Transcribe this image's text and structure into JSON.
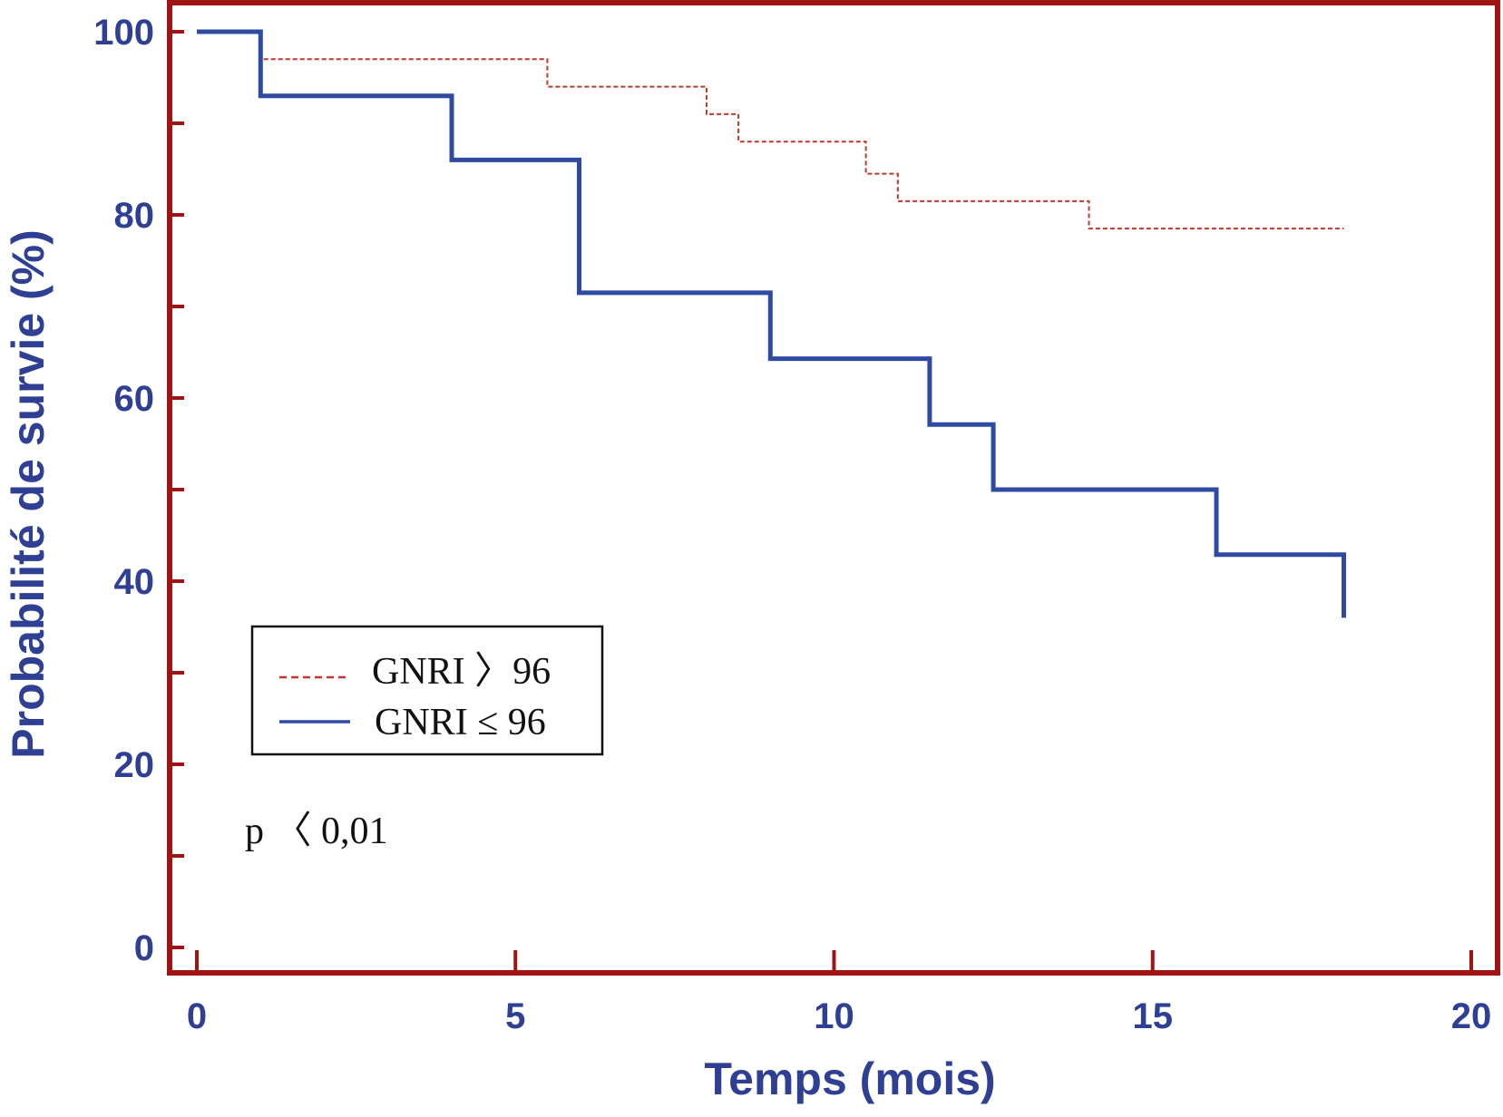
{
  "chart_data": {
    "type": "line",
    "subtype": "step",
    "title": "",
    "xlabel": "Temps (mois)",
    "ylabel": "Probabilité de survie (%)",
    "xlim": [
      0,
      20
    ],
    "ylim": [
      0,
      100
    ],
    "x_ticks": [
      0,
      5,
      10,
      15,
      20
    ],
    "x_tick_labels": [
      "0",
      "5",
      "10",
      "15",
      "20"
    ],
    "y_ticks": [
      0,
      20,
      40,
      60,
      80,
      100
    ],
    "y_tick_labels": [
      "0",
      "20",
      "40",
      "60",
      "80",
      "100"
    ],
    "y_minor_ticks": [
      10,
      30,
      50,
      70,
      90
    ],
    "grid": false,
    "legend_position": "bottom-left",
    "annotation": "p 〈 0,01",
    "series": [
      {
        "name": "GNRI 〉96",
        "style": "dashed",
        "color": "#c0392b",
        "points": [
          [
            0,
            100
          ],
          [
            1,
            100
          ],
          [
            1,
            97
          ],
          [
            5.5,
            97
          ],
          [
            5.5,
            94
          ],
          [
            8,
            94
          ],
          [
            8,
            91
          ],
          [
            8.5,
            91
          ],
          [
            8.5,
            88
          ],
          [
            10.5,
            88
          ],
          [
            10.5,
            84.5
          ],
          [
            11,
            84.5
          ],
          [
            11,
            81.5
          ],
          [
            14,
            81.5
          ],
          [
            14,
            78.5
          ],
          [
            18,
            78.5
          ]
        ]
      },
      {
        "name": "GNRI ≤ 96",
        "style": "solid",
        "color": "#2e4aa3",
        "points": [
          [
            0,
            100
          ],
          [
            1,
            100
          ],
          [
            1,
            93
          ],
          [
            4,
            93
          ],
          [
            4,
            86
          ],
          [
            6,
            86
          ],
          [
            6,
            71.5
          ],
          [
            9,
            71.5
          ],
          [
            9,
            64.3
          ],
          [
            11.5,
            64.3
          ],
          [
            11.5,
            57.1
          ],
          [
            12.5,
            57.1
          ],
          [
            12.5,
            50
          ],
          [
            16,
            50
          ],
          [
            16,
            42.9
          ],
          [
            18,
            42.9
          ],
          [
            18,
            36
          ]
        ]
      }
    ],
    "colors": {
      "frame": "#a01414",
      "axis_text": "#2e3f94",
      "legend_frame": "#111111"
    }
  }
}
